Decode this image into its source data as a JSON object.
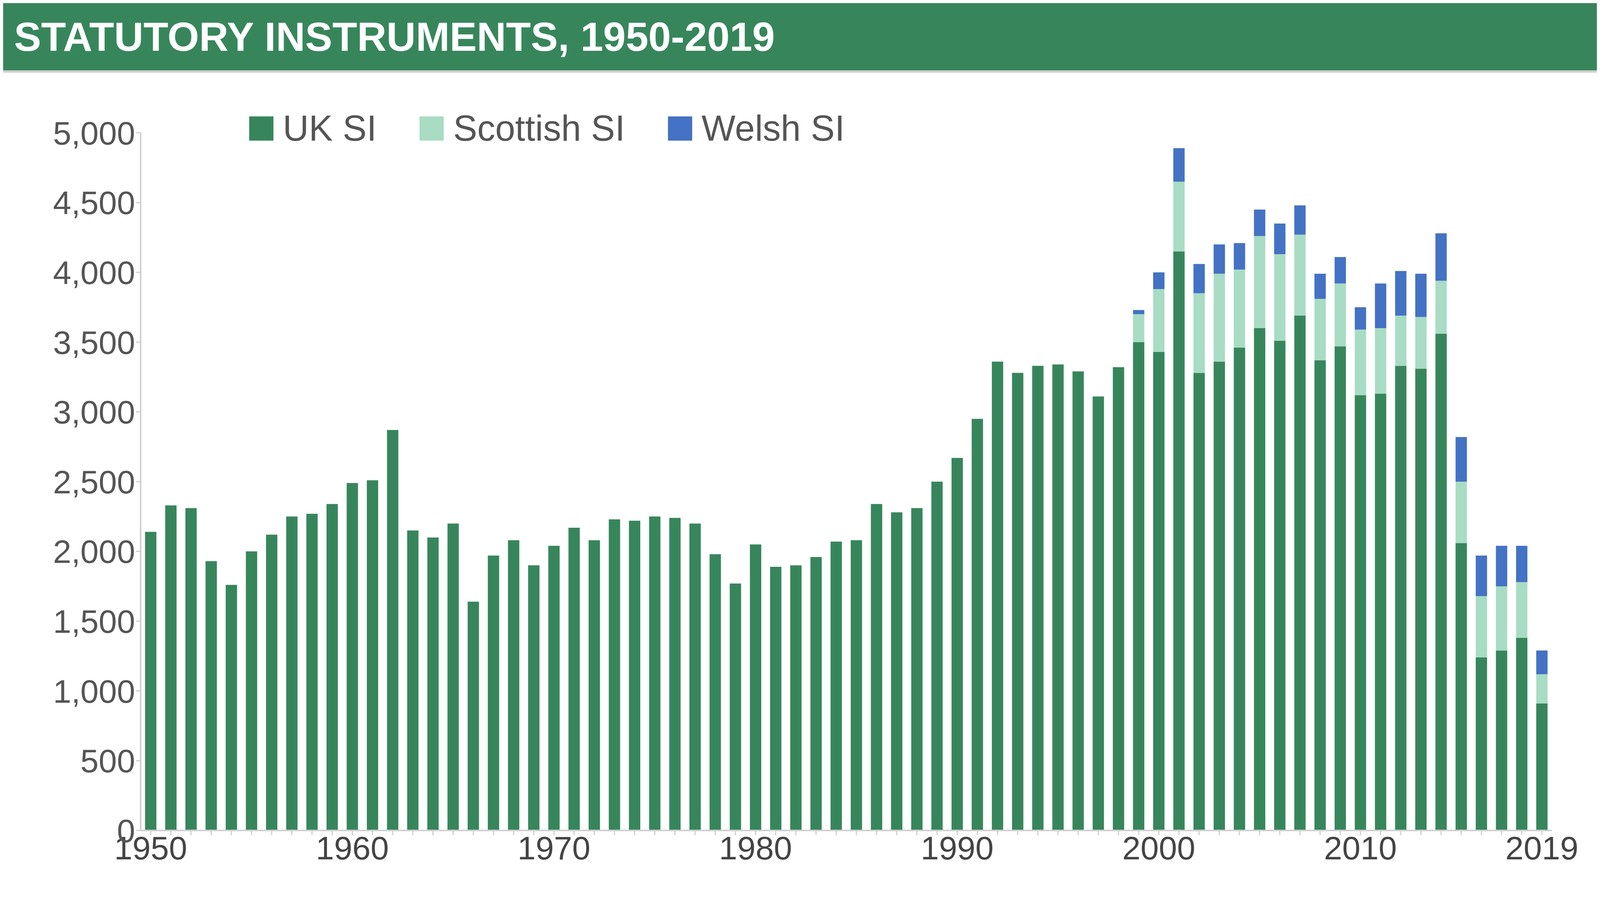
{
  "chart_data": {
    "type": "bar",
    "title": "STATUTORY INSTRUMENTS, 1950-2019",
    "stacked": true,
    "grid": false,
    "legend": "top-left",
    "categories": [
      "1950",
      null,
      null,
      null,
      null,
      null,
      null,
      null,
      null,
      null,
      "1960",
      null,
      null,
      null,
      null,
      null,
      null,
      null,
      null,
      null,
      "1970",
      null,
      null,
      null,
      null,
      null,
      null,
      null,
      null,
      null,
      "1980",
      null,
      null,
      null,
      null,
      null,
      null,
      null,
      null,
      null,
      "1990",
      null,
      null,
      null,
      null,
      null,
      null,
      null,
      null,
      null,
      "2000",
      null,
      null,
      null,
      null,
      null,
      null,
      null,
      null,
      null,
      "2010",
      null,
      null,
      null,
      null,
      null,
      null,
      null,
      null,
      "2019"
    ],
    "series": [
      {
        "name": "UK SI",
        "color": "#37865b",
        "values": [
          2140,
          2330,
          2310,
          1930,
          1760,
          2000,
          2120,
          2250,
          2270,
          2340,
          2490,
          2510,
          2870,
          2150,
          2100,
          2200,
          1640,
          1970,
          2080,
          1900,
          2040,
          2170,
          2080,
          2230,
          2220,
          2250,
          2240,
          2200,
          1980,
          1770,
          2050,
          1890,
          1900,
          1960,
          2070,
          2080,
          2340,
          2280,
          2310,
          2500,
          2670,
          2950,
          3360,
          3280,
          3330,
          3340,
          3290,
          3110,
          3320,
          3500,
          3430,
          4150,
          3280,
          3360,
          3460,
          3600,
          3510,
          3690,
          3370,
          3470,
          3120,
          3130,
          3330,
          3310,
          3560,
          2060,
          1240,
          1290,
          1380,
          910
        ]
      },
      {
        "name": "Scottish SI",
        "color": "#a8dcc4",
        "values": [
          null,
          null,
          null,
          null,
          null,
          null,
          null,
          null,
          null,
          null,
          null,
          null,
          null,
          null,
          null,
          null,
          null,
          null,
          null,
          null,
          null,
          null,
          null,
          null,
          null,
          null,
          null,
          null,
          null,
          null,
          null,
          null,
          null,
          null,
          null,
          null,
          null,
          null,
          null,
          null,
          null,
          null,
          null,
          null,
          null,
          null,
          null,
          null,
          null,
          200,
          450,
          500,
          570,
          630,
          560,
          660,
          620,
          580,
          440,
          450,
          470,
          470,
          360,
          370,
          380,
          440,
          440,
          460,
          400,
          210
        ]
      },
      {
        "name": "Welsh SI",
        "color": "#4472c4",
        "values": [
          null,
          null,
          null,
          null,
          null,
          null,
          null,
          null,
          null,
          null,
          null,
          null,
          null,
          null,
          null,
          null,
          null,
          null,
          null,
          null,
          null,
          null,
          null,
          null,
          null,
          null,
          null,
          null,
          null,
          null,
          null,
          null,
          null,
          null,
          null,
          null,
          null,
          null,
          null,
          null,
          null,
          null,
          null,
          null,
          null,
          null,
          null,
          null,
          null,
          30,
          120,
          240,
          210,
          210,
          190,
          190,
          220,
          210,
          180,
          190,
          160,
          320,
          320,
          310,
          340,
          320,
          290,
          290,
          260,
          170
        ]
      }
    ],
    "ylim": [
      0,
      5000
    ],
    "yticks": [
      0,
      500,
      {
        "value": 1000,
        "label": "1,000"
      },
      {
        "value": 1500,
        "label": "1,500"
      },
      {
        "value": 2000,
        "label": "2,000"
      },
      {
        "value": 2500,
        "label": "2,500"
      },
      {
        "value": 3000,
        "label": "3,000"
      },
      {
        "value": 3500,
        "label": "3,500"
      },
      {
        "value": 4000,
        "label": "4,000"
      },
      {
        "value": 4500,
        "label": "4,500"
      },
      {
        "value": 5000,
        "label": "5,000"
      }
    ]
  }
}
